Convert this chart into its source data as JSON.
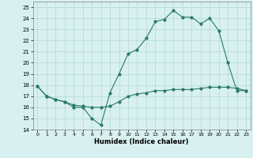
{
  "xlabel": "Humidex (Indice chaleur)",
  "ylabel": "",
  "xlim": [
    -0.5,
    23.5
  ],
  "ylim": [
    14,
    25.5
  ],
  "yticks": [
    14,
    15,
    16,
    17,
    18,
    19,
    20,
    21,
    22,
    23,
    24,
    25
  ],
  "xticks": [
    0,
    1,
    2,
    3,
    4,
    5,
    6,
    7,
    8,
    9,
    10,
    11,
    12,
    13,
    14,
    15,
    16,
    17,
    18,
    19,
    20,
    21,
    22,
    23
  ],
  "line_color": "#2a7a6a",
  "bg_color": "#d8f0f0",
  "grid_color": "#b0d8d8",
  "line1_x": [
    0,
    1,
    2,
    3,
    4,
    5,
    6,
    7,
    8,
    9,
    10,
    11,
    12,
    13,
    14,
    15,
    16,
    17,
    18,
    19,
    20,
    21,
    22,
    23
  ],
  "line1_y": [
    17.9,
    17.0,
    16.7,
    16.5,
    16.0,
    16.0,
    15.0,
    14.4,
    17.3,
    19.0,
    20.8,
    21.2,
    22.2,
    23.7,
    23.9,
    24.7,
    24.1,
    24.1,
    23.5,
    24.0,
    22.9,
    20.0,
    17.5,
    17.5
  ],
  "line2_x": [
    0,
    1,
    2,
    3,
    4,
    5,
    6,
    7,
    8,
    9,
    10,
    11,
    12,
    13,
    14,
    15,
    16,
    17,
    18,
    19,
    20,
    21,
    22,
    23
  ],
  "line2_y": [
    17.9,
    17.0,
    16.7,
    16.5,
    16.2,
    16.1,
    16.0,
    16.0,
    16.1,
    16.5,
    17.0,
    17.2,
    17.3,
    17.5,
    17.5,
    17.6,
    17.6,
    17.6,
    17.7,
    17.8,
    17.8,
    17.8,
    17.7,
    17.5
  ]
}
